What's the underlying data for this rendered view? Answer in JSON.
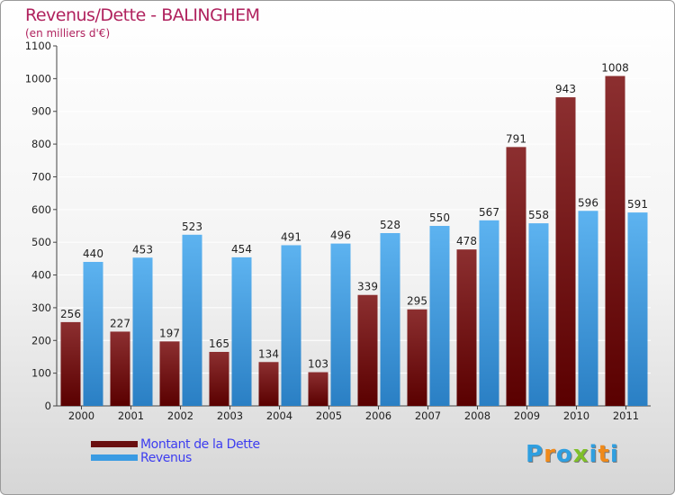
{
  "title": "Revenus/Dette - BALINGHEM",
  "subtitle": "(en milliers d'€)",
  "logo": {
    "text": "Proxiti",
    "letter_colors": [
      "#2f9fe0",
      "#f08a1a",
      "#2f9fe0",
      "#7fbf2a",
      "#2f9fe0",
      "#f08a1a",
      "#2f9fe0"
    ]
  },
  "chart_data": {
    "type": "bar",
    "categories": [
      "2000",
      "2001",
      "2002",
      "2003",
      "2004",
      "2005",
      "2006",
      "2007",
      "2008",
      "2009",
      "2010",
      "2011"
    ],
    "series": [
      {
        "name": "Montant de la Dette",
        "color": "#6a0f10",
        "values": [
          256,
          227,
          197,
          165,
          134,
          103,
          339,
          295,
          478,
          791,
          943,
          1008
        ]
      },
      {
        "name": "Revenus",
        "color": "#3a9be3",
        "values": [
          440,
          453,
          523,
          454,
          491,
          496,
          528,
          550,
          567,
          558,
          596,
          591
        ]
      }
    ],
    "ylim": [
      0,
      1100
    ],
    "yticks": [
      0,
      100,
      200,
      300,
      400,
      500,
      600,
      700,
      800,
      900,
      1000,
      1100
    ],
    "grid": true,
    "legend": "bottom-left"
  }
}
